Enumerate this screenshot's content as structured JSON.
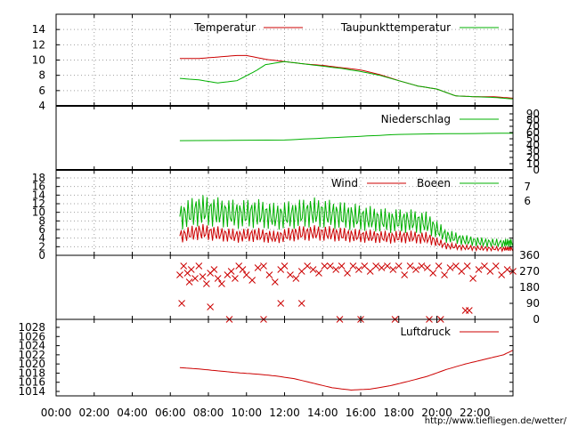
{
  "source_link": "http://www.tiefliegen.de/wetter/",
  "colors": {
    "red": "#cc0000",
    "green": "#00b000",
    "grid": "#a0a0a0"
  },
  "chart_data": [
    {
      "id": "temperature",
      "type": "line",
      "xlim": [
        0,
        24
      ],
      "ylim": [
        4,
        16
      ],
      "y_ticks": [
        4,
        6,
        8,
        10,
        12,
        14
      ],
      "grid": true,
      "legend_placement": "top",
      "series": [
        {
          "name": "Temperatur",
          "color": "#cc0000",
          "x": [
            6.5,
            7.5,
            8.5,
            9.5,
            10.0,
            11.0,
            12.0,
            13.0,
            14.0,
            15.0,
            16.0,
            17.0,
            18.0,
            19.0,
            20.0,
            21.0,
            22.0,
            23.0,
            24.0
          ],
          "y": [
            10.2,
            10.2,
            10.4,
            10.6,
            10.6,
            10.1,
            9.8,
            9.5,
            9.3,
            9.0,
            8.7,
            8.1,
            7.3,
            6.6,
            6.2,
            5.3,
            5.2,
            5.2,
            5.0
          ]
        },
        {
          "name": "Taupunkttemperatur",
          "color": "#00b000",
          "x": [
            6.5,
            7.5,
            8.5,
            9.5,
            10.5,
            11.0,
            12.0,
            13.0,
            14.0,
            15.0,
            16.0,
            17.0,
            18.0,
            19.0,
            20.0,
            21.0,
            22.0,
            23.0,
            24.0
          ],
          "y": [
            7.6,
            7.4,
            7.0,
            7.3,
            8.6,
            9.4,
            9.8,
            9.5,
            9.2,
            8.9,
            8.5,
            8.0,
            7.3,
            6.6,
            6.2,
            5.3,
            5.2,
            5.1,
            4.9
          ]
        }
      ]
    },
    {
      "id": "precipitation",
      "type": "line",
      "xlim": [
        0,
        24
      ],
      "ylim": [
        0,
        90
      ],
      "y_ticks": [
        0,
        10,
        20,
        30,
        40,
        50,
        60,
        70,
        80,
        90
      ],
      "grid": false,
      "legend_placement": "top-right",
      "series": [
        {
          "name": "Niederschlag",
          "color": "#00b000",
          "x": [
            6.5,
            12.0,
            14.0,
            16.0,
            18.0,
            20.0,
            24.0
          ],
          "y": [
            47,
            48,
            51,
            54,
            57,
            58,
            59
          ]
        }
      ]
    },
    {
      "id": "wind",
      "type": "line",
      "xlim": [
        0,
        24
      ],
      "ylim": [
        0,
        19
      ],
      "y_ticks": [
        0,
        2,
        4,
        6,
        8,
        10,
        12,
        14,
        16,
        18
      ],
      "y2_labels": [
        6,
        7
      ],
      "grid": true,
      "legend_placement": "top-right",
      "series": [
        {
          "name": "Wind",
          "color": "#cc0000",
          "x": [
            6.5,
            7.5,
            8.5,
            9.5,
            10.5,
            11.5,
            12.5,
            13.5,
            14.5,
            15.5,
            16.5,
            17.5,
            18.5,
            19.5,
            20.5,
            21.5,
            22.5,
            23.5,
            24.0
          ],
          "y": [
            4.5,
            5.5,
            5.0,
            4.5,
            4.8,
            4.2,
            5.0,
            5.2,
            5.0,
            4.6,
            4.4,
            4.2,
            4.3,
            4.0,
            2.2,
            1.8,
            1.6,
            1.5,
            1.6
          ]
        },
        {
          "name": "Boeen",
          "color": "#00b000",
          "x": [
            6.5,
            7.5,
            8.5,
            9.5,
            10.5,
            11.5,
            12.5,
            13.5,
            14.5,
            15.5,
            16.5,
            17.5,
            18.5,
            19.5,
            20.5,
            21.5,
            22.5,
            23.5,
            24.0
          ],
          "y": [
            9.0,
            10.5,
            10.0,
            9.5,
            9.8,
            9.0,
            9.5,
            10.0,
            9.5,
            9.0,
            8.5,
            8.0,
            8.0,
            7.5,
            4.5,
            3.5,
            3.0,
            2.8,
            3.0
          ]
        }
      ]
    },
    {
      "id": "wind_direction",
      "type": "scatter",
      "xlim": [
        0,
        24
      ],
      "ylim": [
        0,
        360
      ],
      "y_ticks": [
        0,
        90,
        180,
        270,
        360
      ],
      "grid": false,
      "marker": "x",
      "color": "#cc0000",
      "points": [
        [
          6.5,
          250
        ],
        [
          6.7,
          300
        ],
        [
          6.9,
          260
        ],
        [
          7.0,
          210
        ],
        [
          7.1,
          280
        ],
        [
          7.3,
          230
        ],
        [
          7.5,
          300
        ],
        [
          7.7,
          240
        ],
        [
          7.9,
          200
        ],
        [
          8.1,
          260
        ],
        [
          8.3,
          280
        ],
        [
          8.5,
          230
        ],
        [
          8.7,
          200
        ],
        [
          9.0,
          250
        ],
        [
          9.2,
          270
        ],
        [
          9.4,
          230
        ],
        [
          9.6,
          300
        ],
        [
          9.8,
          280
        ],
        [
          10.0,
          250
        ],
        [
          10.3,
          220
        ],
        [
          10.6,
          290
        ],
        [
          10.9,
          300
        ],
        [
          11.2,
          250
        ],
        [
          11.5,
          210
        ],
        [
          11.8,
          280
        ],
        [
          12.0,
          300
        ],
        [
          12.3,
          250
        ],
        [
          12.6,
          230
        ],
        [
          12.9,
          270
        ],
        [
          13.2,
          300
        ],
        [
          13.5,
          280
        ],
        [
          13.8,
          260
        ],
        [
          14.1,
          300
        ],
        [
          14.4,
          300
        ],
        [
          14.7,
          280
        ],
        [
          15.0,
          300
        ],
        [
          15.3,
          260
        ],
        [
          15.6,
          300
        ],
        [
          15.9,
          280
        ],
        [
          16.2,
          300
        ],
        [
          16.5,
          270
        ],
        [
          16.8,
          300
        ],
        [
          17.1,
          290
        ],
        [
          17.4,
          300
        ],
        [
          17.7,
          280
        ],
        [
          18.0,
          300
        ],
        [
          18.3,
          250
        ],
        [
          18.6,
          300
        ],
        [
          18.9,
          280
        ],
        [
          19.2,
          300
        ],
        [
          19.5,
          290
        ],
        [
          19.8,
          260
        ],
        [
          20.1,
          300
        ],
        [
          20.4,
          250
        ],
        [
          20.7,
          290
        ],
        [
          21.0,
          300
        ],
        [
          21.3,
          270
        ],
        [
          21.6,
          300
        ],
        [
          21.9,
          230
        ],
        [
          22.2,
          280
        ],
        [
          22.5,
          300
        ],
        [
          22.8,
          270
        ],
        [
          23.1,
          300
        ],
        [
          23.4,
          250
        ],
        [
          23.7,
          280
        ],
        [
          24.0,
          270
        ],
        [
          6.6,
          90
        ],
        [
          8.1,
          70
        ],
        [
          9.1,
          0
        ],
        [
          10.9,
          0
        ],
        [
          11.8,
          90
        ],
        [
          12.9,
          90
        ],
        [
          14.9,
          0
        ],
        [
          16.0,
          0
        ],
        [
          17.8,
          0
        ],
        [
          19.6,
          0
        ],
        [
          20.2,
          0
        ],
        [
          21.5,
          50
        ],
        [
          21.7,
          50
        ]
      ]
    },
    {
      "id": "pressure",
      "type": "line",
      "xlim": [
        0,
        24
      ],
      "ylim": [
        1013,
        1029
      ],
      "y_ticks": [
        1014,
        1016,
        1018,
        1020,
        1022,
        1024,
        1026,
        1028
      ],
      "grid": false,
      "legend_placement": "top-right",
      "series": [
        {
          "name": "Luftdruck",
          "color": "#cc0000",
          "x": [
            6.5,
            7.5,
            8.5,
            9.5,
            10.5,
            11.5,
            12.5,
            13.5,
            14.5,
            15.5,
            16.5,
            17.5,
            18.5,
            19.5,
            20.5,
            21.5,
            22.5,
            23.5,
            24.0
          ],
          "y": [
            1019.2,
            1018.9,
            1018.5,
            1018.1,
            1017.8,
            1017.4,
            1016.8,
            1015.8,
            1014.8,
            1014.3,
            1014.5,
            1015.2,
            1016.2,
            1017.3,
            1018.8,
            1020.0,
            1021.0,
            1022.0,
            1023.0
          ]
        }
      ]
    }
  ],
  "x_axis": {
    "ticks": [
      0,
      2,
      4,
      6,
      8,
      10,
      12,
      14,
      16,
      18,
      20,
      22
    ],
    "tick_labels": [
      "00:00",
      "02:00",
      "04:00",
      "06:00",
      "08:00",
      "10:00",
      "12:00",
      "14:00",
      "16:00",
      "18:00",
      "20:00",
      "22:00"
    ]
  }
}
